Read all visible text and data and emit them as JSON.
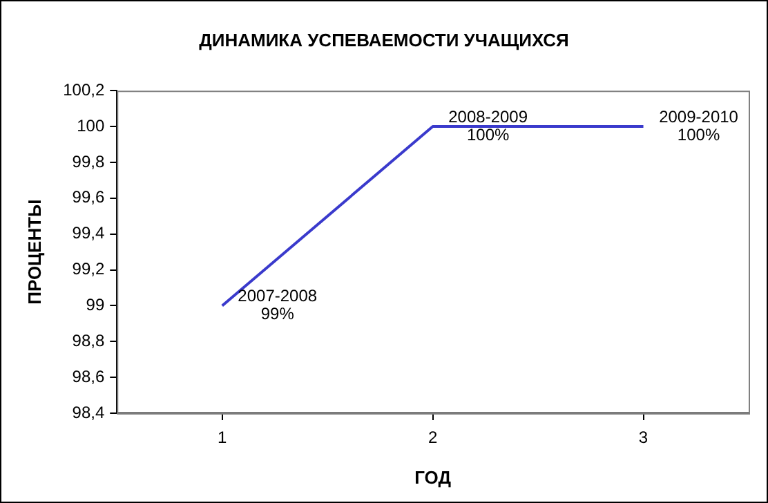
{
  "chart_data": {
    "type": "line",
    "title": "ДИНАМИКА УСПЕВАЕМОСТИ УЧАЩИХСЯ",
    "xlabel": "ГОД",
    "ylabel": "ПРОЦЕНТЫ",
    "categories": [
      "1",
      "2",
      "3"
    ],
    "series": [
      {
        "color": "#3a3acc",
        "values": [
          99,
          100,
          100
        ],
        "value_labels": [
          "2007-2008\n99%",
          "2008-2009\n100%",
          "2009-2010\n100%"
        ]
      }
    ],
    "ylim": [
      98.4,
      100.2
    ],
    "yticks": [
      {
        "value": 98.4,
        "label": "98,4"
      },
      {
        "value": 98.6,
        "label": "98,6"
      },
      {
        "value": 98.8,
        "label": "98,8"
      },
      {
        "value": 99,
        "label": "99"
      },
      {
        "value": 99.2,
        "label": "99,2"
      },
      {
        "value": 99.4,
        "label": "99,4"
      },
      {
        "value": 99.6,
        "label": "99,6"
      },
      {
        "value": 99.8,
        "label": "99,8"
      },
      {
        "value": 100,
        "label": "100"
      },
      {
        "value": 100.2,
        "label": "100,2"
      }
    ],
    "grid": false,
    "legend": false,
    "marker": "none",
    "line_style": "solid"
  }
}
